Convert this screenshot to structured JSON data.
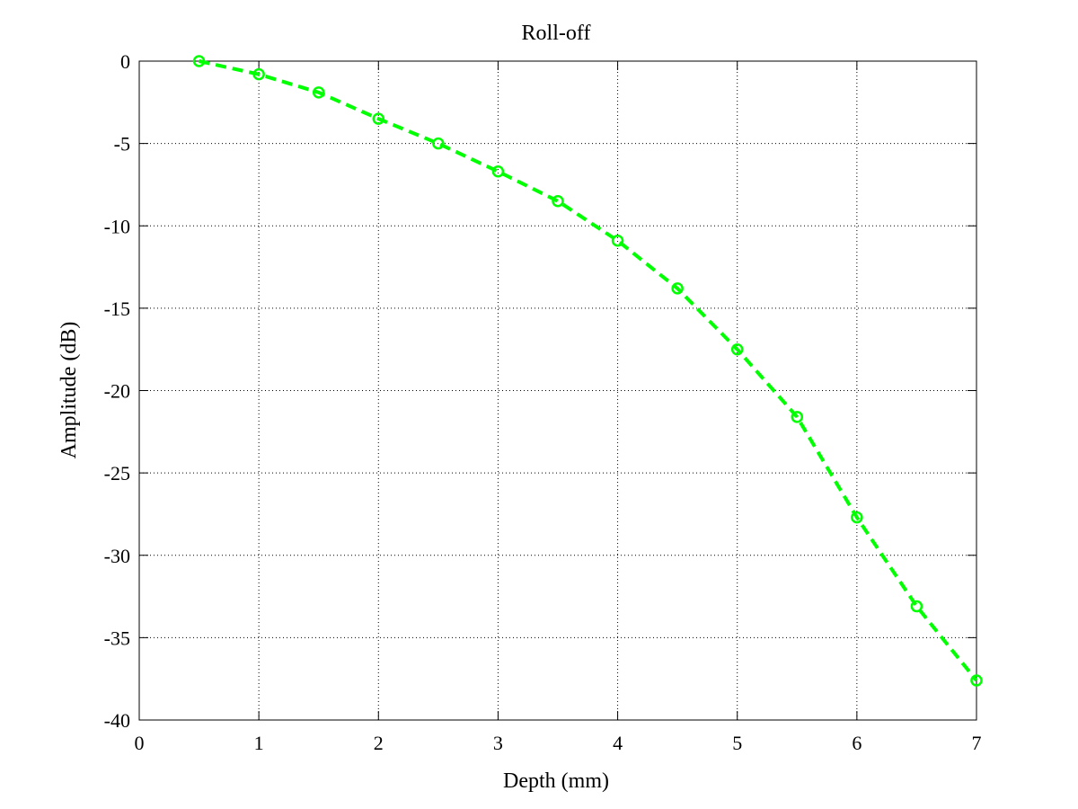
{
  "chart_data": {
    "type": "line",
    "title": "Roll-off",
    "xlabel": "Depth (mm)",
    "ylabel": "Amplitude (dB)",
    "xlim": [
      0,
      7
    ],
    "ylim": [
      -40,
      0
    ],
    "xticks": [
      0,
      1,
      2,
      3,
      4,
      5,
      6,
      7
    ],
    "yticks": [
      0,
      -5,
      -10,
      -15,
      -20,
      -25,
      -30,
      -35,
      -40
    ],
    "xtick_labels": [
      "0",
      "1",
      "2",
      "3",
      "4",
      "5",
      "6",
      "7"
    ],
    "ytick_labels": [
      "0",
      "-5",
      "-10",
      "-15",
      "-20",
      "-25",
      "-30",
      "-35",
      "-40"
    ],
    "grid": true,
    "series": [
      {
        "color": "#00ff00",
        "line_style": "dashed",
        "marker": "circle",
        "x": [
          0.5,
          1.0,
          1.5,
          2.0,
          2.5,
          3.0,
          3.5,
          4.0,
          4.5,
          5.0,
          5.5,
          6.0,
          6.5,
          7.0
        ],
        "y": [
          0,
          -0.8,
          -1.9,
          -3.5,
          -5.0,
          -6.7,
          -8.5,
          -10.9,
          -13.8,
          -17.5,
          -21.6,
          -27.7,
          -33.1,
          -37.6
        ]
      }
    ]
  }
}
